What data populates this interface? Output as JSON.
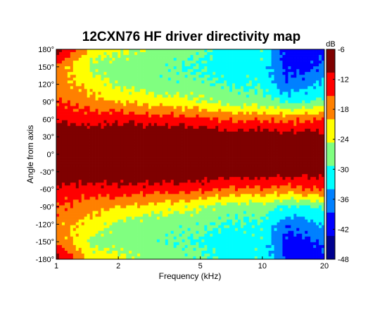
{
  "chart_data": {
    "type": "heatmap",
    "title": "12CXN76 HF driver directivity map",
    "xlabel": "Frequency (kHz)",
    "ylabel": "Angle from axis",
    "x_scale": "log",
    "xlim": [
      1,
      20
    ],
    "ylim": [
      -180,
      180
    ],
    "x_ticks": [
      "1",
      "2",
      "5",
      "10",
      "20"
    ],
    "x_tick_values": [
      1,
      2,
      5,
      10,
      20
    ],
    "y_ticks": [
      "180°",
      "150°",
      "120°",
      "90°",
      "60°",
      "30°",
      "0°",
      "-30°",
      "-60°",
      "-90°",
      "-120°",
      "-150°",
      "-180°"
    ],
    "y_tick_values": [
      180,
      150,
      120,
      90,
      60,
      30,
      0,
      -30,
      -60,
      -90,
      -120,
      -150,
      -180
    ],
    "colorbar": {
      "label": "dB",
      "range": [
        -48,
        -6
      ],
      "ticks": [
        "-6",
        "-12",
        "-18",
        "-24",
        "-30",
        "-36",
        "-42",
        "-48"
      ],
      "tick_values": [
        -6,
        -12,
        -18,
        -24,
        -30,
        -36,
        -42,
        -48
      ],
      "colors": [
        "#7f0000",
        "#ff0000",
        "#ff8000",
        "#ffff00",
        "#80ff80",
        "#00ffff",
        "#0080ff",
        "#0000ff",
        "#00008f"
      ]
    },
    "frequencies_khz": [
      1,
      1.5,
      2,
      3,
      5,
      7,
      10,
      13,
      16,
      20
    ],
    "angles_deg": [
      180,
      150,
      120,
      90,
      60,
      30,
      0,
      -30,
      -60,
      -90,
      -120,
      -150,
      -180
    ],
    "level_db": [
      [
        -8,
        -22,
        -24,
        -26,
        -28,
        -32,
        -30,
        -40,
        -42,
        -40
      ],
      [
        -16,
        -26,
        -27,
        -28,
        -30,
        -32,
        -31,
        -40,
        -40,
        -38
      ],
      [
        -18,
        -22,
        -26,
        -28,
        -28,
        -30,
        -30,
        -38,
        -36,
        -33
      ],
      [
        -15,
        -18,
        -20,
        -22,
        -24,
        -27,
        -27,
        -30,
        -30,
        -28
      ],
      [
        -12,
        -13,
        -12,
        -13,
        -14,
        -16,
        -16,
        -17,
        -16,
        -15
      ],
      [
        -6,
        -6,
        -6,
        -6,
        -6,
        -8,
        -7,
        -8,
        -8,
        -9
      ],
      [
        -6,
        -6,
        -6,
        -6,
        -6,
        -6,
        -6,
        -6,
        -6,
        -6
      ],
      [
        -6,
        -6,
        -6,
        -6,
        -6,
        -8,
        -7,
        -8,
        -8,
        -9
      ],
      [
        -12,
        -13,
        -12,
        -13,
        -14,
        -16,
        -16,
        -17,
        -16,
        -15
      ],
      [
        -15,
        -18,
        -20,
        -22,
        -24,
        -27,
        -27,
        -30,
        -30,
        -28
      ],
      [
        -18,
        -22,
        -26,
        -28,
        -28,
        -30,
        -30,
        -38,
        -36,
        -33
      ],
      [
        -16,
        -26,
        -27,
        -28,
        -30,
        -32,
        -31,
        -40,
        -40,
        -38
      ],
      [
        -8,
        -22,
        -24,
        -26,
        -28,
        -32,
        -30,
        -40,
        -42,
        -40
      ]
    ]
  }
}
